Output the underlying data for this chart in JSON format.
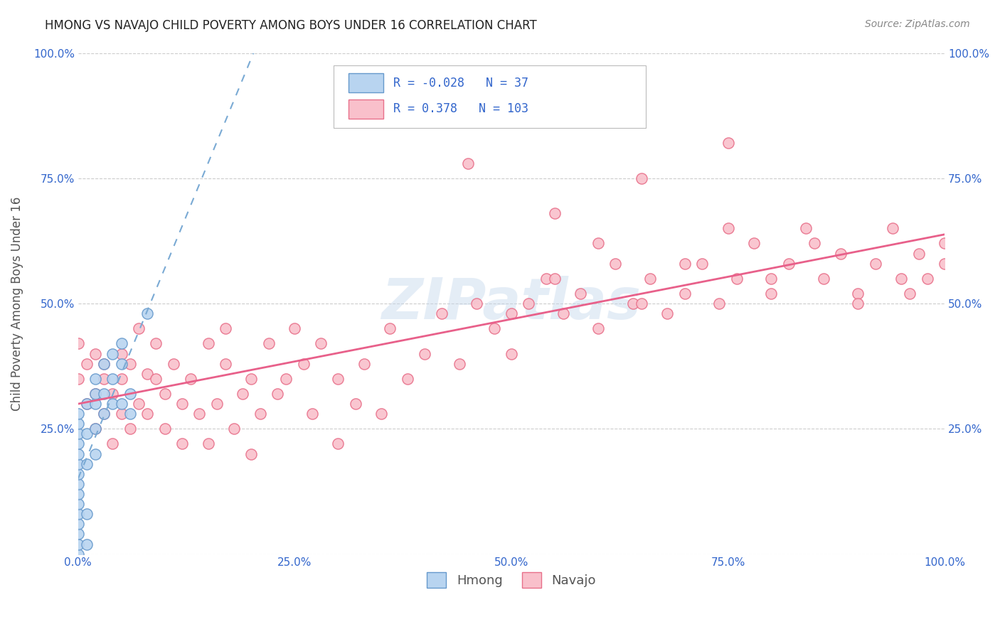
{
  "title": "HMONG VS NAVAJO CHILD POVERTY AMONG BOYS UNDER 16 CORRELATION CHART",
  "source": "Source: ZipAtlas.com",
  "ylabel": "Child Poverty Among Boys Under 16",
  "watermark": "ZIPatlas",
  "legend_hmong_R": "-0.028",
  "legend_hmong_N": "37",
  "legend_navajo_R": "0.378",
  "legend_navajo_N": "103",
  "hmong_color": "#b8d4f0",
  "navajo_color": "#f9c0cb",
  "hmong_edge": "#6699cc",
  "navajo_edge": "#e8708a",
  "trend_hmong_color": "#7aaad4",
  "trend_navajo_color": "#e8608a",
  "background_color": "#ffffff",
  "grid_color": "#cccccc",
  "title_color": "#222222",
  "axis_label_color": "#555555",
  "tick_color": "#3366cc",
  "source_color": "#888888",
  "hmong_x": [
    0.0,
    0.0,
    0.0,
    0.0,
    0.0,
    0.0,
    0.0,
    0.0,
    0.0,
    0.0,
    0.0,
    0.0,
    0.0,
    0.0,
    0.0,
    0.01,
    0.01,
    0.01,
    0.01,
    0.01,
    0.02,
    0.02,
    0.02,
    0.02,
    0.02,
    0.03,
    0.03,
    0.03,
    0.04,
    0.04,
    0.04,
    0.05,
    0.05,
    0.05,
    0.06,
    0.06,
    0.08
  ],
  "hmong_y": [
    0.0,
    0.02,
    0.04,
    0.06,
    0.08,
    0.1,
    0.12,
    0.14,
    0.16,
    0.18,
    0.2,
    0.22,
    0.24,
    0.26,
    0.28,
    0.02,
    0.08,
    0.18,
    0.24,
    0.3,
    0.2,
    0.25,
    0.3,
    0.32,
    0.35,
    0.28,
    0.32,
    0.38,
    0.3,
    0.35,
    0.4,
    0.3,
    0.38,
    0.42,
    0.28,
    0.32,
    0.48
  ],
  "navajo_x": [
    0.0,
    0.0,
    0.01,
    0.01,
    0.02,
    0.02,
    0.02,
    0.03,
    0.03,
    0.03,
    0.04,
    0.04,
    0.05,
    0.05,
    0.05,
    0.06,
    0.06,
    0.07,
    0.07,
    0.08,
    0.08,
    0.09,
    0.09,
    0.1,
    0.1,
    0.11,
    0.12,
    0.12,
    0.13,
    0.14,
    0.15,
    0.15,
    0.16,
    0.17,
    0.17,
    0.18,
    0.19,
    0.2,
    0.2,
    0.21,
    0.22,
    0.23,
    0.24,
    0.25,
    0.26,
    0.27,
    0.28,
    0.3,
    0.3,
    0.32,
    0.33,
    0.35,
    0.36,
    0.38,
    0.4,
    0.42,
    0.44,
    0.46,
    0.48,
    0.5,
    0.52,
    0.54,
    0.56,
    0.58,
    0.6,
    0.62,
    0.64,
    0.66,
    0.68,
    0.7,
    0.72,
    0.74,
    0.76,
    0.78,
    0.8,
    0.82,
    0.84,
    0.86,
    0.88,
    0.9,
    0.92,
    0.94,
    0.96,
    0.97,
    0.98,
    1.0,
    0.5,
    0.55,
    0.6,
    0.65,
    0.7,
    0.75,
    0.8,
    0.85,
    0.9,
    0.95,
    1.0,
    0.45,
    0.55,
    0.65,
    0.75
  ],
  "navajo_y": [
    0.35,
    0.42,
    0.3,
    0.38,
    0.25,
    0.32,
    0.4,
    0.28,
    0.35,
    0.38,
    0.32,
    0.22,
    0.28,
    0.35,
    0.4,
    0.25,
    0.38,
    0.3,
    0.45,
    0.28,
    0.36,
    0.35,
    0.42,
    0.25,
    0.32,
    0.38,
    0.22,
    0.3,
    0.35,
    0.28,
    0.42,
    0.22,
    0.3,
    0.38,
    0.45,
    0.25,
    0.32,
    0.2,
    0.35,
    0.28,
    0.42,
    0.32,
    0.35,
    0.45,
    0.38,
    0.28,
    0.42,
    0.35,
    0.22,
    0.3,
    0.38,
    0.28,
    0.45,
    0.35,
    0.4,
    0.48,
    0.38,
    0.5,
    0.45,
    0.4,
    0.5,
    0.55,
    0.48,
    0.52,
    0.45,
    0.58,
    0.5,
    0.55,
    0.48,
    0.52,
    0.58,
    0.5,
    0.55,
    0.62,
    0.52,
    0.58,
    0.65,
    0.55,
    0.6,
    0.52,
    0.58,
    0.65,
    0.52,
    0.6,
    0.55,
    0.58,
    0.48,
    0.55,
    0.62,
    0.5,
    0.58,
    0.65,
    0.55,
    0.62,
    0.5,
    0.55,
    0.62,
    0.78,
    0.68,
    0.75,
    0.82
  ],
  "xlim": [
    0.0,
    1.0
  ],
  "ylim": [
    0.0,
    1.0
  ],
  "x_ticks": [
    0.0,
    0.25,
    0.5,
    0.75,
    1.0
  ],
  "y_ticks": [
    0.0,
    0.25,
    0.5,
    0.75,
    1.0
  ],
  "x_tick_labels": [
    "0.0%",
    "25.0%",
    "50.0%",
    "75.0%",
    "100.0%"
  ],
  "y_tick_labels_left": [
    "",
    "25.0%",
    "50.0%",
    "75.0%",
    "100.0%"
  ],
  "y_tick_labels_right": [
    "",
    "25.0%",
    "50.0%",
    "75.0%",
    "100.0%"
  ],
  "marker_size": 120
}
